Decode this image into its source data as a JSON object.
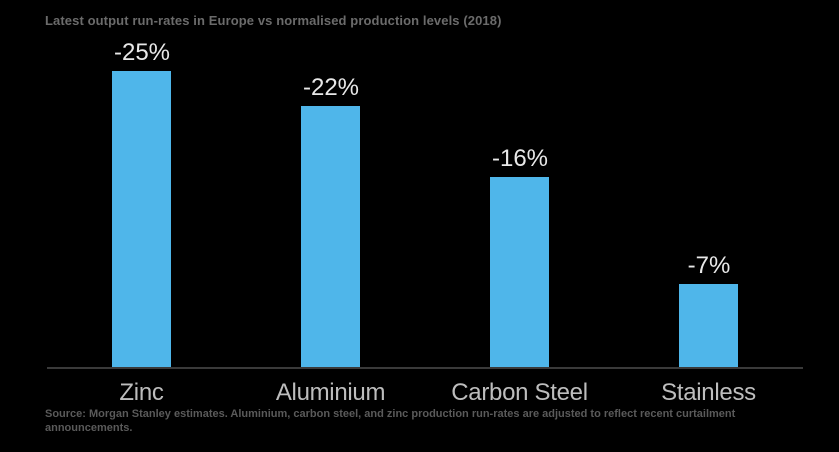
{
  "title": "Latest output run-rates in Europe vs normalised production levels (2018)",
  "source_note": "Source: Morgan Stanley estimates. Aluminium, carbon steel, and zinc production run-rates are adjusted to reflect recent curtailment announcements.",
  "colors": {
    "background": "#000000",
    "bar_fill": "#4FB6EA",
    "title_text": "#6B6B6B",
    "value_label_text": "#E8E8E8",
    "category_label_text": "#BDBDBD",
    "source_text": "#5A5A5A",
    "axis_line": "#3A3A3A"
  },
  "chart_data": {
    "type": "bar",
    "title": "Latest output run-rates in Europe vs normalised production levels (2018)",
    "categories": [
      "Zinc",
      "Aluminium",
      "Carbon Steel",
      "Stainless"
    ],
    "values": [
      -25,
      -22,
      -16,
      -7
    ],
    "value_labels": [
      "-25%",
      "-22%",
      "-16%",
      "-7%"
    ],
    "unit": "percent",
    "note": "Bars drawn upward proportional to the magnitude of the negative run-rate change",
    "xlabel": "",
    "ylabel": "",
    "ylim": [
      0,
      25
    ],
    "grid": false,
    "legend": false,
    "y_axis_ticks_visible": false,
    "background": "dark"
  }
}
